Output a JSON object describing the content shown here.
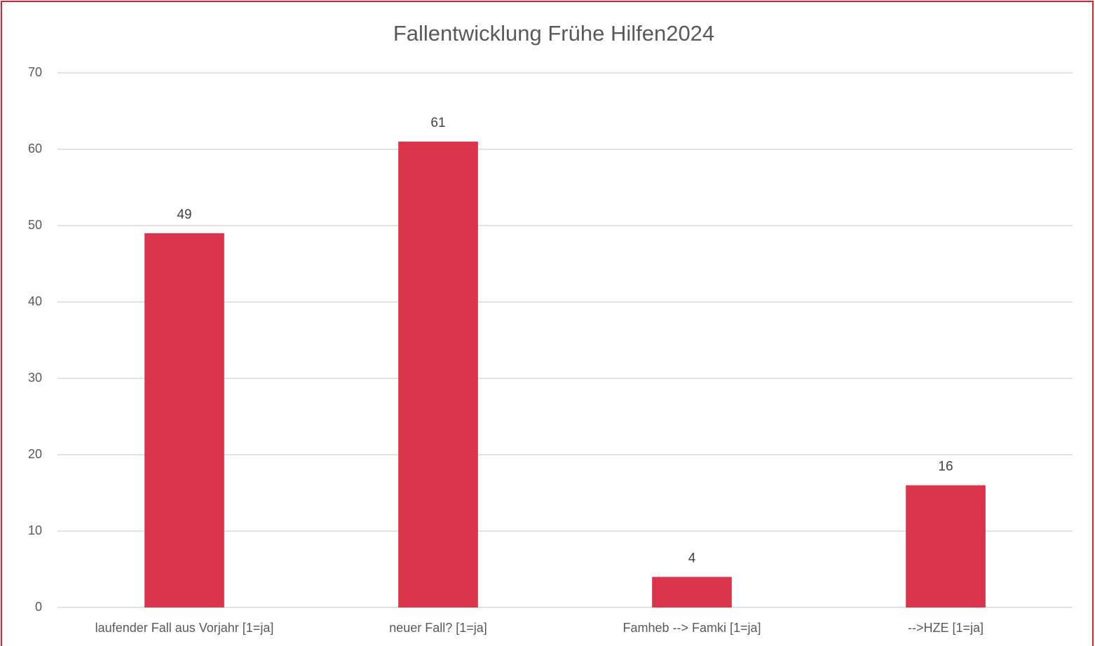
{
  "chart_data": {
    "type": "bar",
    "title": "Fallentwicklung Frühe Hilfen2024",
    "categories": [
      "laufender Fall aus Vorjahr [1=ja]",
      "neuer Fall? [1=ja]",
      "Famheb --> Famki [1=ja]",
      "-->HZE [1=ja]"
    ],
    "values": [
      49,
      61,
      4,
      16
    ],
    "color": "#d9344a",
    "ylim": [
      0,
      70
    ],
    "yticks": [
      0,
      10,
      20,
      30,
      40,
      50,
      60,
      70
    ],
    "grid": true
  }
}
